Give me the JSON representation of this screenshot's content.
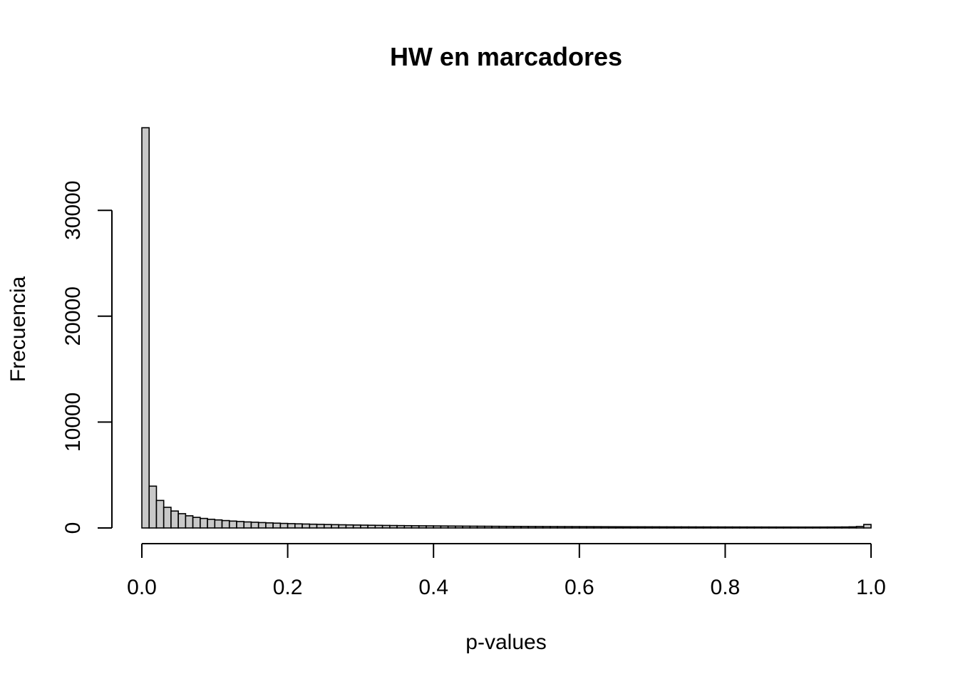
{
  "chart_data": {
    "type": "bar",
    "title": "HW en marcadores",
    "xlabel": "p-values",
    "ylabel": "Frecuencia",
    "xlim": [
      0,
      1
    ],
    "ylim": [
      0,
      37800
    ],
    "x_ticks": [
      "0.0",
      "0.2",
      "0.4",
      "0.6",
      "0.8",
      "1.0"
    ],
    "y_ticks": [
      "0",
      "10000",
      "20000",
      "30000"
    ],
    "bin_width": 0.01,
    "bar_fill": "#c8c8c8",
    "bar_edge": "#000000",
    "grid": false,
    "values": [
      37800,
      3950,
      2600,
      1950,
      1600,
      1350,
      1150,
      1000,
      900,
      820,
      760,
      700,
      650,
      610,
      570,
      540,
      510,
      480,
      455,
      430,
      410,
      390,
      372,
      355,
      340,
      325,
      312,
      300,
      288,
      277,
      267,
      257,
      248,
      240,
      232,
      225,
      218,
      211,
      205,
      199,
      193,
      188,
      183,
      178,
      173,
      169,
      165,
      161,
      157,
      153,
      150,
      147,
      144,
      141,
      138,
      135,
      133,
      130,
      128,
      126,
      124,
      122,
      120,
      118,
      116,
      114,
      112,
      110,
      109,
      107,
      106,
      104,
      103,
      101,
      100,
      99,
      97,
      96,
      95,
      94,
      93,
      92,
      91,
      90,
      89,
      88,
      87,
      86,
      86,
      85,
      84,
      84,
      85,
      86,
      88,
      90,
      95,
      105,
      140,
      330
    ]
  }
}
